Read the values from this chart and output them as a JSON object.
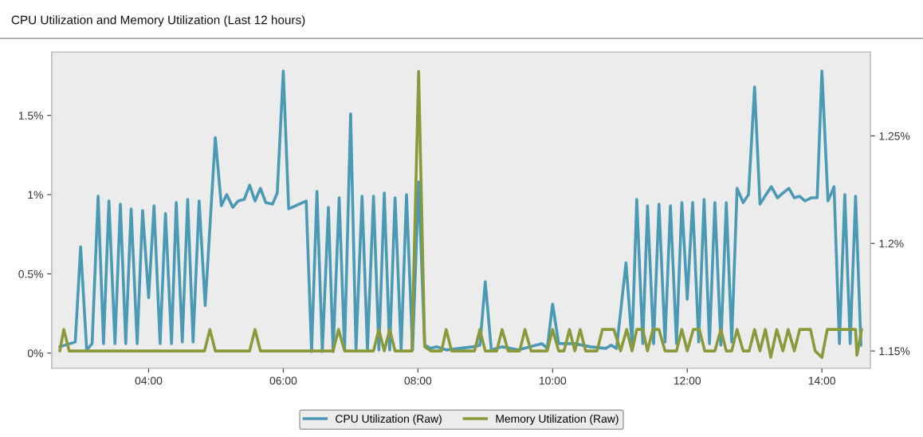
{
  "chart_data": {
    "type": "line",
    "title": "CPU Utilization and Memory Utilization (Last 12 hours)",
    "xlim": [
      2.56,
      14.72
    ],
    "xticks": [
      {
        "value": 4,
        "label": "04:00"
      },
      {
        "value": 6,
        "label": "06:00"
      },
      {
        "value": 8,
        "label": "08:00"
      },
      {
        "value": 10,
        "label": "10:00"
      },
      {
        "value": 12,
        "label": "12:00"
      },
      {
        "value": 14,
        "label": "14:00"
      }
    ],
    "ylim": [
      -0.095,
      1.9
    ],
    "yticks": [
      {
        "value": 0,
        "label": "0%"
      },
      {
        "value": 0.5,
        "label": "0.5%"
      },
      {
        "value": 1,
        "label": "1%"
      },
      {
        "value": 1.5,
        "label": "1.5%"
      }
    ],
    "y2lim": [
      1.142,
      1.289
    ],
    "y2ticks": [
      {
        "value": 1.15,
        "label": "1.15%"
      },
      {
        "value": 1.2,
        "label": "1.2%"
      },
      {
        "value": 1.25,
        "label": "1.25%"
      }
    ],
    "grid": false,
    "legend": "bottom",
    "marker": "none",
    "line_style": "solid",
    "series": [
      {
        "name": "CPU Utilization (Raw)",
        "color": "#4a9ab5",
        "x": [
          2.68,
          2.91,
          2.99,
          3.08,
          3.16,
          3.25,
          3.33,
          3.41,
          3.5,
          3.58,
          3.66,
          3.74,
          3.83,
          3.91,
          4.0,
          4.08,
          4.17,
          4.25,
          4.34,
          4.41,
          4.5,
          4.58,
          4.66,
          4.75,
          4.84,
          4.99,
          5.08,
          5.16,
          5.25,
          5.33,
          5.42,
          5.5,
          5.58,
          5.66,
          5.74,
          5.84,
          5.91,
          6.0,
          6.08,
          6.34,
          6.42,
          6.5,
          6.58,
          6.67,
          6.74,
          6.83,
          6.91,
          7.0,
          7.08,
          7.17,
          7.25,
          7.34,
          7.42,
          7.5,
          7.58,
          7.66,
          7.75,
          7.83,
          7.92,
          8.01,
          8.1,
          8.19,
          8.28,
          8.42,
          8.82,
          8.92,
          9.0,
          9.09,
          9.25,
          9.49,
          9.84,
          9.92,
          10.0,
          10.09,
          10.32,
          10.56,
          10.79,
          10.87,
          10.95,
          11.09,
          11.18,
          11.25,
          11.34,
          11.41,
          11.5,
          11.58,
          11.67,
          11.75,
          11.84,
          11.92,
          12.0,
          12.08,
          12.17,
          12.25,
          12.33,
          12.41,
          12.5,
          12.58,
          12.66,
          12.74,
          12.83,
          12.91,
          13.0,
          13.08,
          13.17,
          13.25,
          13.34,
          13.42,
          13.51,
          13.59,
          13.67,
          13.75,
          13.84,
          13.93,
          14.0,
          14.09,
          14.18,
          14.26,
          14.34,
          14.42,
          14.5,
          14.58
        ],
        "values": [
          0.04,
          0.07,
          0.67,
          0.02,
          0.06,
          0.99,
          0.06,
          0.96,
          0.06,
          0.94,
          0.06,
          0.91,
          0.06,
          0.9,
          0.35,
          0.93,
          0.06,
          0.88,
          0.06,
          0.95,
          0.07,
          0.97,
          0.07,
          0.96,
          0.3,
          1.36,
          0.93,
          1.0,
          0.92,
          0.96,
          0.97,
          1.06,
          0.96,
          1.04,
          0.95,
          0.94,
          1.01,
          1.78,
          0.91,
          0.96,
          0.01,
          1.02,
          0.01,
          0.92,
          0.01,
          0.98,
          0.02,
          1.51,
          0.02,
          0.99,
          0.02,
          0.99,
          0.02,
          1.01,
          0.02,
          0.98,
          0.02,
          1.0,
          0.02,
          1.08,
          0.05,
          0.03,
          0.04,
          0.02,
          0.04,
          0.05,
          0.45,
          0.02,
          0.04,
          0.02,
          0.06,
          0.03,
          0.31,
          0.06,
          0.06,
          0.04,
          0.03,
          0.05,
          0.03,
          0.57,
          0.06,
          0.97,
          0.06,
          0.93,
          0.06,
          0.94,
          0.07,
          0.93,
          0.06,
          0.95,
          0.34,
          0.95,
          0.07,
          0.97,
          0.06,
          0.95,
          0.05,
          0.95,
          0.07,
          1.04,
          0.95,
          1.0,
          1.68,
          0.94,
          1.0,
          1.05,
          0.98,
          1.01,
          1.04,
          0.98,
          0.99,
          0.96,
          0.98,
          0.98,
          1.78,
          0.96,
          1.05,
          0.06,
          1.0,
          0.06,
          0.99,
          0.05
        ]
      },
      {
        "name": "Memory Utilization (Raw)",
        "color": "#8a9a3a",
        "axis": "y2",
        "x": [
          2.68,
          2.74,
          2.82,
          4.83,
          4.91,
          4.99,
          5.5,
          5.58,
          5.66,
          6.74,
          6.82,
          6.91,
          7.34,
          7.42,
          7.5,
          7.58,
          7.66,
          7.91,
          8.01,
          8.1,
          8.19,
          8.35,
          8.42,
          8.5,
          8.84,
          8.92,
          9.0,
          9.17,
          9.25,
          9.34,
          9.51,
          9.59,
          9.68,
          9.92,
          10.0,
          10.09,
          10.17,
          10.25,
          10.33,
          10.41,
          10.49,
          10.66,
          10.74,
          10.91,
          11.01,
          11.1,
          11.18,
          11.25,
          11.34,
          11.41,
          11.49,
          11.58,
          11.67,
          11.84,
          11.92,
          12.0,
          12.09,
          12.18,
          12.26,
          12.41,
          12.5,
          12.58,
          12.66,
          12.74,
          12.83,
          12.92,
          13.0,
          13.08,
          13.16,
          13.24,
          13.33,
          13.42,
          13.5,
          13.59,
          13.67,
          13.83,
          13.9,
          14.0,
          14.08,
          14.5,
          14.52,
          14.59
        ],
        "values": [
          1.15,
          1.16,
          1.15,
          1.15,
          1.16,
          1.15,
          1.15,
          1.16,
          1.15,
          1.15,
          1.16,
          1.15,
          1.15,
          1.16,
          1.15,
          1.16,
          1.15,
          1.15,
          1.28,
          1.152,
          1.15,
          1.15,
          1.16,
          1.15,
          1.15,
          1.16,
          1.15,
          1.15,
          1.16,
          1.15,
          1.15,
          1.16,
          1.15,
          1.15,
          1.16,
          1.15,
          1.15,
          1.16,
          1.15,
          1.16,
          1.15,
          1.15,
          1.16,
          1.16,
          1.15,
          1.16,
          1.15,
          1.16,
          1.16,
          1.15,
          1.16,
          1.16,
          1.15,
          1.15,
          1.16,
          1.15,
          1.16,
          1.16,
          1.15,
          1.15,
          1.16,
          1.15,
          1.15,
          1.16,
          1.15,
          1.15,
          1.16,
          1.15,
          1.16,
          1.147,
          1.16,
          1.15,
          1.16,
          1.15,
          1.16,
          1.16,
          1.15,
          1.147,
          1.16,
          1.16,
          1.148,
          1.16
        ]
      }
    ]
  }
}
